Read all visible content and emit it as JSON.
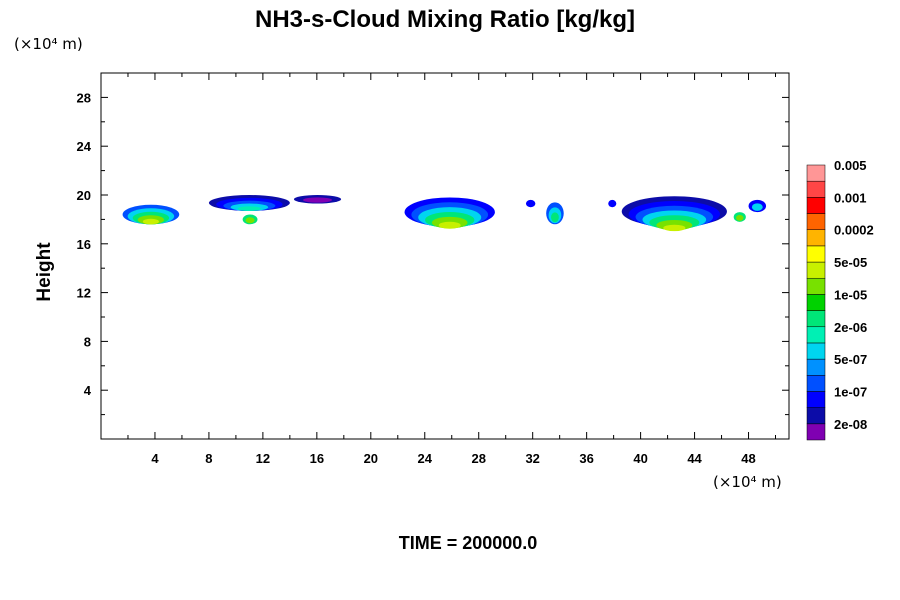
{
  "chart_data": {
    "type": "heatmap",
    "title": "NH3-s-Cloud Mixing Ratio [kg/kg]",
    "ylabel": "Height",
    "y_unit_label": "(×10⁴ m)",
    "x_unit_label": "(×10⁴ m)",
    "footer": "TIME = 200000.0",
    "xlim": [
      0,
      51
    ],
    "ylim": [
      0,
      30
    ],
    "x_ticks": [
      4,
      8,
      12,
      16,
      20,
      24,
      28,
      32,
      36,
      40,
      44,
      48
    ],
    "y_ticks": [
      4,
      8,
      12,
      16,
      20,
      24,
      28
    ],
    "colorbar": {
      "colors": [
        "#7f00b2",
        "#0c0ca8",
        "#0000ff",
        "#0050ff",
        "#0091ff",
        "#00d5f0",
        "#00f0b4",
        "#00e678",
        "#00d200",
        "#78e100",
        "#c8f000",
        "#ffff00",
        "#ffb400",
        "#ff6400",
        "#ff0000",
        "#ff4646",
        "#ff9696"
      ],
      "labels": [
        "2e-08",
        "1e-07",
        "5e-07",
        "2e-06",
        "1e-05",
        "5e-05",
        "0.0002",
        "0.001",
        "0.005"
      ]
    },
    "cloud_blobs": [
      {
        "x0": 1.6,
        "x1": 5.8,
        "y0": 17.6,
        "y1": 19.2,
        "colors": [
          "#0050ff",
          "#00d5f0",
          "#00e678",
          "#78e100",
          "#c8f000"
        ]
      },
      {
        "x0": 8.0,
        "x1": 14.0,
        "y0": 18.7,
        "y1": 20.0,
        "colors": [
          "#0c0ca8",
          "#0000ff",
          "#0050ff",
          "#00d5f0",
          "#00f0b4"
        ]
      },
      {
        "x0": 10.5,
        "x1": 11.6,
        "y0": 17.6,
        "y1": 18.4,
        "colors": [
          "#00e678",
          "#78e100"
        ]
      },
      {
        "x0": 14.3,
        "x1": 17.8,
        "y0": 19.3,
        "y1": 20.0,
        "colors": [
          "#0c0ca8",
          "#7f00b2"
        ]
      },
      {
        "x0": 22.5,
        "x1": 29.2,
        "y0": 17.4,
        "y1": 19.8,
        "colors": [
          "#0000ff",
          "#0050ff",
          "#00d5f0",
          "#00e678",
          "#78e100",
          "#c8f000"
        ]
      },
      {
        "x0": 31.5,
        "x1": 32.2,
        "y0": 19.0,
        "y1": 19.6,
        "colors": [
          "#0000ff"
        ]
      },
      {
        "x0": 33.0,
        "x1": 34.3,
        "y0": 17.6,
        "y1": 19.4,
        "colors": [
          "#0050ff",
          "#00d5f0",
          "#00e678"
        ]
      },
      {
        "x0": 37.6,
        "x1": 38.2,
        "y0": 19.0,
        "y1": 19.6,
        "colors": [
          "#0000ff"
        ]
      },
      {
        "x0": 38.6,
        "x1": 46.4,
        "y0": 17.4,
        "y1": 19.9,
        "colors": [
          "#0c0ca8",
          "#0000ff",
          "#0050ff",
          "#00d5f0",
          "#00e678",
          "#78e100",
          "#c8f000"
        ]
      },
      {
        "x0": 46.9,
        "x1": 47.8,
        "y0": 17.8,
        "y1": 18.6,
        "colors": [
          "#00e678",
          "#78e100"
        ]
      },
      {
        "x0": 48.0,
        "x1": 49.3,
        "y0": 18.6,
        "y1": 19.6,
        "colors": [
          "#0000ff",
          "#00d5f0"
        ]
      }
    ]
  }
}
